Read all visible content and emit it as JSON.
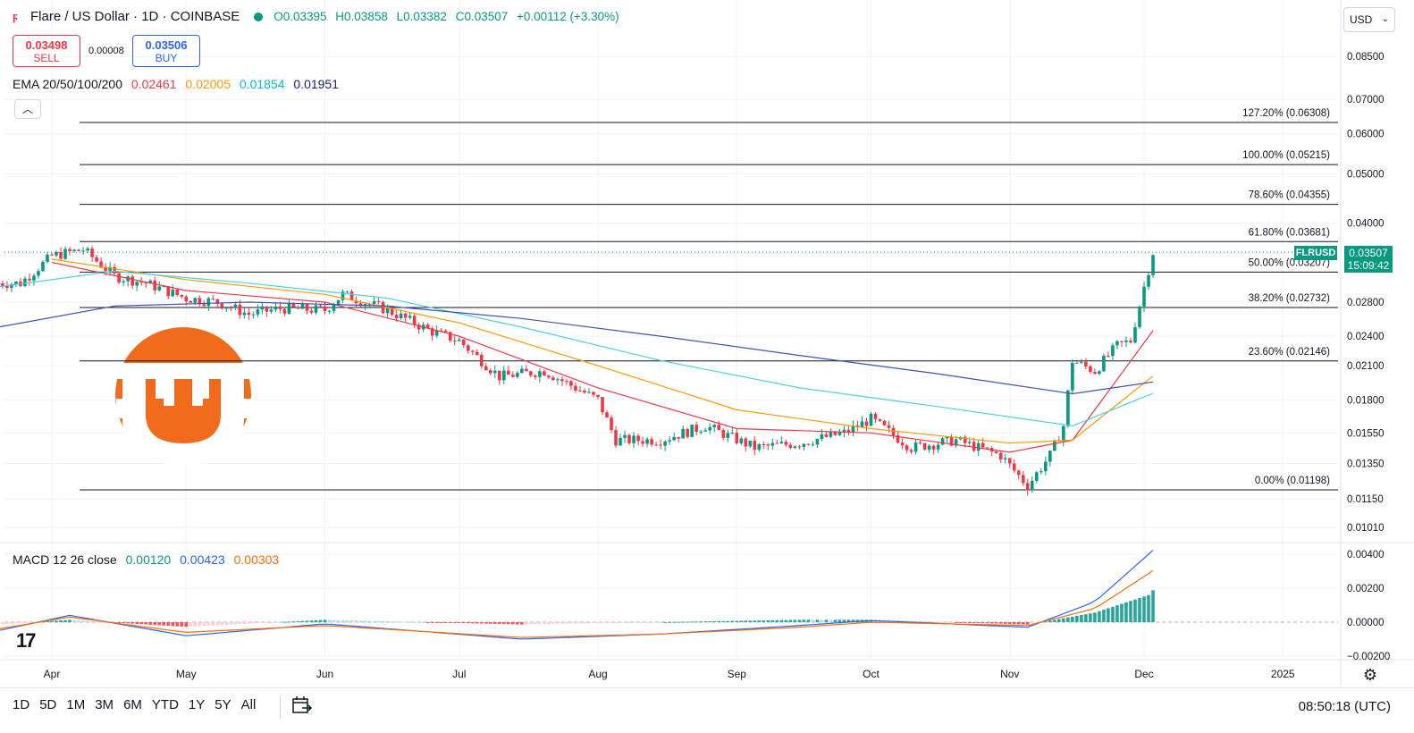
{
  "header": {
    "title": "Flare / US Dollar · 1D · COINBASE",
    "open": "O0.03395",
    "high": "H0.03858",
    "low": "L0.03382",
    "close": "C0.03507",
    "change": "+0.00112 (+3.30%)"
  },
  "trade": {
    "sell_price": "0.03498",
    "sell_label": "SELL",
    "spread": "0.00008",
    "buy_price": "0.03506",
    "buy_label": "BUY"
  },
  "ema": {
    "label": "EMA 20/50/100/200",
    "values": [
      "0.02461",
      "0.02005",
      "0.01854",
      "0.01951"
    ],
    "colors": [
      "#f23645",
      "#ff9800",
      "#4dd0e1",
      "#3f51b5"
    ]
  },
  "macd": {
    "label": "MACD 12 26 close",
    "values": [
      "0.00120",
      "0.00423",
      "0.00303"
    ],
    "colors": [
      "#089981",
      "#2962ff",
      "#ff6d00"
    ]
  },
  "currency": "USD",
  "symbol_badge": "FLRUSD",
  "last_price": "0.03507",
  "countdown": "15:09:42",
  "price_axis": [
    "0.08500",
    "0.07000",
    "0.06000",
    "0.05000",
    "0.04000",
    "0.02800",
    "0.02400",
    "0.02100",
    "0.01800",
    "0.01550",
    "0.01350",
    "0.01150",
    "0.01010"
  ],
  "macd_axis": [
    "0.00400",
    "0.00200",
    "0.00000",
    "−0.00200"
  ],
  "time_axis": [
    "Apr",
    "May",
    "Jun",
    "Jul",
    "Aug",
    "Sep",
    "Oct",
    "Nov",
    "Dec",
    "2025"
  ],
  "fib_levels": [
    {
      "label": "127.20% (0.06308)",
      "value": 0.06308
    },
    {
      "label": "100.00% (0.05215)",
      "value": 0.05215
    },
    {
      "label": "78.60% (0.04355)",
      "value": 0.04355
    },
    {
      "label": "61.80% (0.03681)",
      "value": 0.03681
    },
    {
      "label": "50.00% (0.03207)",
      "value": 0.03207
    },
    {
      "label": "38.20% (0.02732)",
      "value": 0.02732
    },
    {
      "label": "23.60% (0.02146)",
      "value": 0.02146
    },
    {
      "label": "0.00% (0.01198)",
      "value": 0.01198
    }
  ],
  "ranges": [
    "1D",
    "5D",
    "1M",
    "3M",
    "6M",
    "YTD",
    "1Y",
    "5Y",
    "All"
  ],
  "clock": "08:50:18 (UTC)",
  "colors": {
    "up": "#089981",
    "down": "#f23645",
    "fib_line": "#131722",
    "brand_logo": "#f26b1d"
  },
  "chart_data": {
    "type": "candlestick",
    "title": "Flare / US Dollar · 1D · COINBASE",
    "scale": "log",
    "ylim": [
      0.0095,
      0.095
    ],
    "x_range": [
      "Mar 20",
      "Jan 15"
    ],
    "x_ticks": [
      "Apr",
      "May",
      "Jun",
      "Jul",
      "Aug",
      "Sep",
      "Oct",
      "Nov",
      "Dec",
      "2025"
    ],
    "close_series": [
      {
        "date": "Mar 25",
        "close": 0.0305
      },
      {
        "date": "Apr 1",
        "close": 0.0345
      },
      {
        "date": "Apr 8",
        "close": 0.0355
      },
      {
        "date": "Apr 15",
        "close": 0.0315
      },
      {
        "date": "Apr 22",
        "close": 0.0305
      },
      {
        "date": "May 1",
        "close": 0.0285
      },
      {
        "date": "May 8",
        "close": 0.028
      },
      {
        "date": "May 15",
        "close": 0.0265
      },
      {
        "date": "May 22",
        "close": 0.0272
      },
      {
        "date": "Jun 1",
        "close": 0.027
      },
      {
        "date": "Jun 5",
        "close": 0.029
      },
      {
        "date": "Jun 15",
        "close": 0.027
      },
      {
        "date": "Jun 25",
        "close": 0.0245
      },
      {
        "date": "Jul 1",
        "close": 0.0235
      },
      {
        "date": "Jul 10",
        "close": 0.02
      },
      {
        "date": "Jul 20",
        "close": 0.0205
      },
      {
        "date": "Aug 1",
        "close": 0.018
      },
      {
        "date": "Aug 5",
        "close": 0.015
      },
      {
        "date": "Aug 15",
        "close": 0.015
      },
      {
        "date": "Aug 25",
        "close": 0.016
      },
      {
        "date": "Sep 5",
        "close": 0.0145
      },
      {
        "date": "Sep 15",
        "close": 0.0148
      },
      {
        "date": "Sep 25",
        "close": 0.0155
      },
      {
        "date": "Oct 1",
        "close": 0.0165
      },
      {
        "date": "Oct 10",
        "close": 0.0145
      },
      {
        "date": "Oct 20",
        "close": 0.015
      },
      {
        "date": "Oct 30",
        "close": 0.014
      },
      {
        "date": "Nov 5",
        "close": 0.0122
      },
      {
        "date": "Nov 10",
        "close": 0.014
      },
      {
        "date": "Nov 13",
        "close": 0.016
      },
      {
        "date": "Nov 15",
        "close": 0.0215
      },
      {
        "date": "Nov 20",
        "close": 0.0205
      },
      {
        "date": "Nov 25",
        "close": 0.023
      },
      {
        "date": "Nov 28",
        "close": 0.0235
      },
      {
        "date": "Dec 1",
        "close": 0.03
      },
      {
        "date": "Dec 3",
        "close": 0.03507
      }
    ],
    "ema_series": [
      {
        "name": "EMA 20",
        "values": [
          [
            "Apr 1",
            0.0335
          ],
          [
            "May 1",
            0.0295
          ],
          [
            "Jun 1",
            0.028
          ],
          [
            "Jul 1",
            0.024
          ],
          [
            "Aug 1",
            0.019
          ],
          [
            "Sep 1",
            0.0158
          ],
          [
            "Oct 1",
            0.0155
          ],
          [
            "Nov 1",
            0.0142
          ],
          [
            "Nov 15",
            0.015
          ],
          [
            "Dec 3",
            0.02461
          ]
        ]
      },
      {
        "name": "EMA 50",
        "values": [
          [
            "Apr 1",
            0.034
          ],
          [
            "May 1",
            0.031
          ],
          [
            "Jun 1",
            0.029
          ],
          [
            "Jul 1",
            0.0255
          ],
          [
            "Aug 1",
            0.021
          ],
          [
            "Sep 1",
            0.0172
          ],
          [
            "Oct 1",
            0.0158
          ],
          [
            "Nov 1",
            0.0148
          ],
          [
            "Nov 15",
            0.015
          ],
          [
            "Dec 3",
            0.02005
          ]
        ]
      },
      {
        "name": "EMA 100",
        "values": [
          [
            "Mar 20",
            0.03
          ],
          [
            "Apr 15",
            0.0322
          ],
          [
            "May 15",
            0.0305
          ],
          [
            "Jun 15",
            0.0285
          ],
          [
            "Jul 15",
            0.025
          ],
          [
            "Aug 15",
            0.0215
          ],
          [
            "Sep 15",
            0.019
          ],
          [
            "Oct 15",
            0.0175
          ],
          [
            "Nov 15",
            0.016
          ],
          [
            "Dec 3",
            0.01854
          ]
        ]
      },
      {
        "name": "EMA 200",
        "values": [
          [
            "Mar 20",
            0.025
          ],
          [
            "Apr 15",
            0.0275
          ],
          [
            "May 15",
            0.028
          ],
          [
            "Jun 15",
            0.0275
          ],
          [
            "Jul 15",
            0.026
          ],
          [
            "Aug 15",
            0.024
          ],
          [
            "Sep 15",
            0.022
          ],
          [
            "Oct 15",
            0.0203
          ],
          [
            "Nov 15",
            0.0185
          ],
          [
            "Dec 3",
            0.01951
          ]
        ]
      }
    ],
    "macd_series": [
      {
        "name": "MACD",
        "values": [
          [
            "Mar 20",
            -0.0005
          ],
          [
            "Apr 5",
            0.0004
          ],
          [
            "May 1",
            -0.0008
          ],
          [
            "Jun 1",
            -0.0001
          ],
          [
            "Jul 15",
            -0.001
          ],
          [
            "Aug 15",
            -0.0007
          ],
          [
            "Sep 15",
            -0.0002
          ],
          [
            "Oct 1",
            0.0001
          ],
          [
            "Nov 5",
            -0.0003
          ],
          [
            "Nov 20",
            0.0012
          ],
          [
            "Dec 3",
            0.00423
          ]
        ]
      },
      {
        "name": "Signal",
        "values": [
          [
            "Mar 20",
            -0.0004
          ],
          [
            "Apr 5",
            0.0003
          ],
          [
            "May 1",
            -0.0006
          ],
          [
            "Jun 1",
            -0.0002
          ],
          [
            "Jul 15",
            -0.0009
          ],
          [
            "Aug 15",
            -0.0007
          ],
          [
            "Sep 15",
            -0.0003
          ],
          [
            "Oct 1",
            0.0
          ],
          [
            "Nov 5",
            -0.0002
          ],
          [
            "Nov 20",
            0.0008
          ],
          [
            "Dec 3",
            0.00303
          ]
        ]
      },
      {
        "name": "Histogram",
        "values": [
          [
            "Dec 3",
            0.0012
          ]
        ]
      }
    ]
  }
}
